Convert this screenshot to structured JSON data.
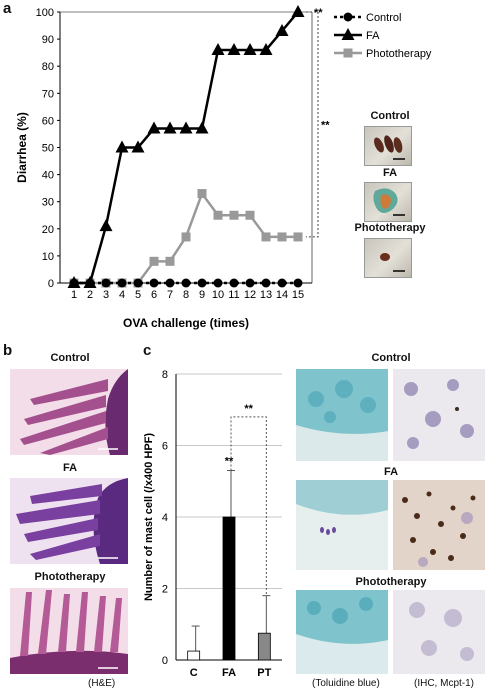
{
  "panels": {
    "a": "a",
    "b": "b",
    "c": "c"
  },
  "chart_a": {
    "type": "line",
    "xlabel": "OVA challenge (times)",
    "ylabel": "Diarrhea (%)",
    "ylim": [
      0,
      100
    ],
    "yticks": [
      0,
      10,
      20,
      30,
      40,
      50,
      60,
      70,
      80,
      90,
      100
    ],
    "x": [
      1,
      2,
      3,
      4,
      5,
      6,
      7,
      8,
      9,
      10,
      11,
      12,
      13,
      14,
      15
    ],
    "series": [
      {
        "name": "Control",
        "color": "#000000",
        "marker": "circle",
        "dashed": true,
        "values": [
          0,
          0,
          0,
          0,
          0,
          0,
          0,
          0,
          0,
          0,
          0,
          0,
          0,
          0,
          0
        ]
      },
      {
        "name": "FA",
        "color": "#000000",
        "marker": "triangle",
        "dashed": false,
        "values": [
          0,
          0,
          21,
          50,
          50,
          57,
          57,
          57,
          57,
          86,
          86,
          86,
          86,
          93,
          100
        ]
      },
      {
        "name": "Phototherapy",
        "color": "#999999",
        "marker": "square",
        "dashed": false,
        "values": [
          0,
          0,
          0,
          0,
          0,
          8,
          8,
          17,
          33,
          25,
          25,
          25,
          17,
          17,
          17
        ]
      }
    ],
    "significance": [
      "**",
      "**"
    ]
  },
  "chart_c": {
    "type": "bar",
    "ylabel": "Number of mast cell (/x400 HPF)",
    "ylim": [
      0,
      8
    ],
    "yticks": [
      0,
      2,
      4,
      6,
      8
    ],
    "categories": [
      "C",
      "FA",
      "PT"
    ],
    "values": [
      0.25,
      4.0,
      0.75
    ],
    "errors": [
      0.7,
      1.3,
      1.05
    ],
    "colors": [
      "#ffffff",
      "#000000",
      "#888888"
    ],
    "significance": [
      "**",
      "**"
    ]
  },
  "stool_labels": [
    "Control",
    "FA",
    "Phototherapy"
  ],
  "he_labels": [
    "Control",
    "FA",
    "Phototherapy"
  ],
  "he_caption": "(H&E)",
  "tissue_labels": [
    "Control",
    "FA",
    "Phototherapy"
  ],
  "toluidine_caption": "(Toluidine blue)",
  "ihc_caption": "(IHC, Mcpt-1)"
}
